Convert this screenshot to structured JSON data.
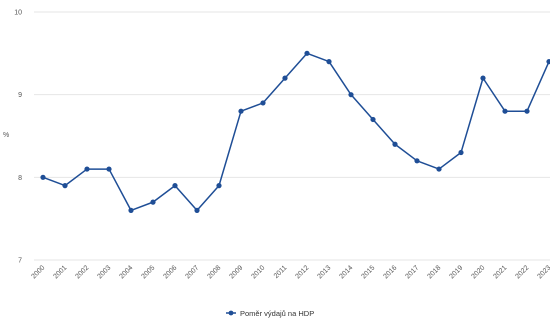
{
  "chart_data": {
    "type": "line",
    "title": "",
    "xlabel": "",
    "ylabel": "%",
    "x": [
      "2000",
      "2001",
      "2002",
      "2003",
      "2004",
      "2005",
      "2006",
      "2007",
      "2008",
      "2009",
      "2010",
      "2011",
      "2012",
      "2013",
      "2014",
      "2015",
      "2016",
      "2017",
      "2018",
      "2019",
      "2020",
      "2021",
      "2022",
      "2023"
    ],
    "series": [
      {
        "name": "Poměr výdajů na HDP",
        "values": [
          8.0,
          7.9,
          8.1,
          8.1,
          7.6,
          7.7,
          7.9,
          7.6,
          7.9,
          8.8,
          8.9,
          9.2,
          9.5,
          9.4,
          9.0,
          8.7,
          8.4,
          8.2,
          8.1,
          8.3,
          9.2,
          8.8,
          8.8,
          9.4
        ]
      }
    ],
    "ylim": [
      7,
      10
    ],
    "yticks": [
      7,
      8,
      9,
      10
    ],
    "grid": true,
    "legend": "bottom-center",
    "colors": {
      "series": "#1f4e96",
      "grid": "#e6e6e6"
    }
  }
}
